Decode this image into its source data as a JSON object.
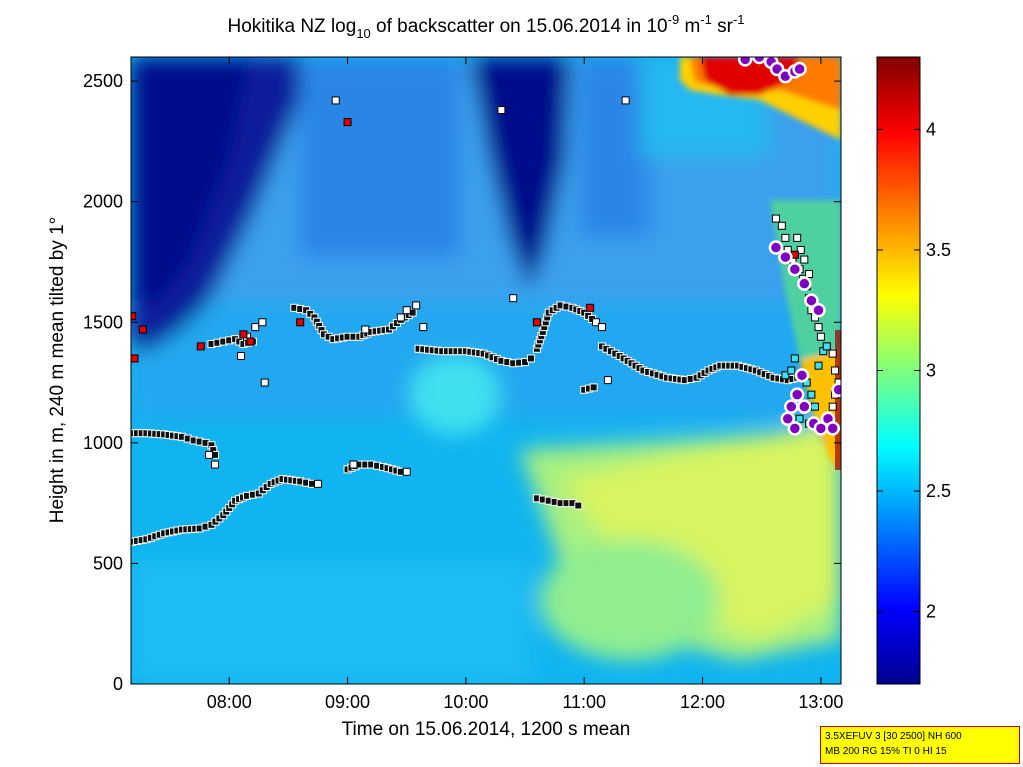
{
  "chart_data": {
    "type": "heatmap",
    "title": {
      "pre": "Hokitika NZ log",
      "sub": "10",
      "mid": " of backscatter on 15.06.2014 in 10",
      "sup1": "-9",
      "mid2": " m",
      "sup2": "-1",
      "mid3": " sr",
      "sup3": "-1"
    },
    "xlabel": "Time on 15.06.2014, 1200 s mean",
    "ylabel": "Height in m, 240 m mean tilted by 1°",
    "xlim": [
      7.17,
      13.17
    ],
    "ylim": [
      0,
      2600
    ],
    "x_ticks": [
      {
        "value": 8,
        "label": "08:00"
      },
      {
        "value": 9,
        "label": "09:00"
      },
      {
        "value": 10,
        "label": "10:00"
      },
      {
        "value": 11,
        "label": "11:00"
      },
      {
        "value": 12,
        "label": "12:00"
      },
      {
        "value": 13,
        "label": "13:00"
      }
    ],
    "y_ticks": [
      {
        "value": 0,
        "label": "0"
      },
      {
        "value": 500,
        "label": "500"
      },
      {
        "value": 1000,
        "label": "1000"
      },
      {
        "value": 1500,
        "label": "1500"
      },
      {
        "value": 2000,
        "label": "2000"
      },
      {
        "value": 2500,
        "label": "2500"
      }
    ],
    "colorbar": {
      "range": [
        1.7,
        4.3
      ],
      "ticks": [
        {
          "value": 2,
          "label": "2"
        },
        {
          "value": 2.5,
          "label": "2.5"
        },
        {
          "value": 3,
          "label": "3"
        },
        {
          "value": 3.5,
          "label": "3.5"
        },
        {
          "value": 4,
          "label": "4"
        }
      ],
      "colormap": [
        "#00008f",
        "#0000ff",
        "#00ffff",
        "#ffff00",
        "#ff0000",
        "#800000"
      ]
    },
    "layers": [
      {
        "kind": "black",
        "points": [
          [
            7.18,
            590
          ],
          [
            7.3,
            600
          ],
          [
            7.45,
            625
          ],
          [
            7.6,
            640
          ],
          [
            7.75,
            645
          ],
          [
            7.85,
            660
          ],
          [
            7.95,
            700
          ],
          [
            8.05,
            760
          ],
          [
            8.15,
            780
          ],
          [
            8.25,
            790
          ],
          [
            8.35,
            830
          ],
          [
            8.45,
            850
          ],
          [
            8.6,
            840
          ],
          [
            8.7,
            830
          ]
        ]
      },
      {
        "kind": "black",
        "points": [
          [
            7.18,
            1040
          ],
          [
            7.3,
            1040
          ],
          [
            7.45,
            1035
          ],
          [
            7.6,
            1025
          ],
          [
            7.7,
            1010
          ],
          [
            7.8,
            1000
          ],
          [
            7.85,
            990
          ],
          [
            7.88,
            950
          ]
        ]
      },
      {
        "kind": "black",
        "points": [
          [
            8.55,
            1560
          ],
          [
            8.65,
            1550
          ],
          [
            8.72,
            1520
          ],
          [
            8.8,
            1450
          ],
          [
            8.88,
            1430
          ],
          [
            9.0,
            1440
          ],
          [
            9.1,
            1440
          ],
          [
            9.2,
            1460
          ],
          [
            9.35,
            1470
          ],
          [
            9.45,
            1510
          ],
          [
            9.55,
            1540
          ]
        ]
      },
      {
        "kind": "black",
        "points": [
          [
            9.6,
            1390
          ],
          [
            9.8,
            1380
          ],
          [
            10.0,
            1380
          ],
          [
            10.15,
            1370
          ],
          [
            10.3,
            1340
          ],
          [
            10.4,
            1330
          ],
          [
            10.5,
            1335
          ],
          [
            10.55,
            1350
          ]
        ]
      },
      {
        "kind": "black",
        "points": [
          [
            10.6,
            1390
          ],
          [
            10.65,
            1460
          ],
          [
            10.7,
            1540
          ],
          [
            10.8,
            1570
          ],
          [
            10.9,
            1560
          ],
          [
            11.0,
            1540
          ],
          [
            11.1,
            1500
          ]
        ]
      },
      {
        "kind": "black",
        "points": [
          [
            11.15,
            1400
          ],
          [
            11.3,
            1360
          ],
          [
            11.5,
            1300
          ],
          [
            11.7,
            1270
          ],
          [
            11.85,
            1260
          ],
          [
            11.95,
            1270
          ],
          [
            12.05,
            1300
          ],
          [
            12.15,
            1320
          ],
          [
            12.3,
            1320
          ],
          [
            12.45,
            1300
          ],
          [
            12.6,
            1270
          ],
          [
            12.72,
            1260
          ],
          [
            12.8,
            1270
          ]
        ]
      },
      {
        "kind": "black",
        "points": [
          [
            9.0,
            890
          ],
          [
            9.1,
            910
          ],
          [
            9.2,
            910
          ],
          [
            9.3,
            900
          ],
          [
            9.45,
            880
          ]
        ]
      },
      {
        "kind": "black",
        "points": [
          [
            10.6,
            770
          ],
          [
            10.7,
            760
          ],
          [
            10.8,
            750
          ],
          [
            10.9,
            750
          ],
          [
            10.95,
            740
          ]
        ]
      },
      {
        "kind": "black",
        "points": [
          [
            7.85,
            1410
          ],
          [
            7.95,
            1420
          ],
          [
            8.05,
            1430
          ],
          [
            8.12,
            1410
          ],
          [
            8.2,
            1420
          ]
        ]
      },
      {
        "kind": "black",
        "points": [
          [
            11.0,
            1220
          ],
          [
            11.08,
            1230
          ]
        ]
      },
      {
        "kind": "white",
        "points": [
          [
            7.88,
            910
          ],
          [
            7.83,
            950
          ],
          [
            8.1,
            1360
          ],
          [
            8.3,
            1250
          ],
          [
            8.15,
            1440
          ],
          [
            8.22,
            1480
          ],
          [
            8.28,
            1500
          ],
          [
            8.75,
            830
          ],
          [
            9.5,
            880
          ],
          [
            9.45,
            1520
          ],
          [
            9.5,
            1550
          ],
          [
            9.58,
            1570
          ],
          [
            9.64,
            1480
          ],
          [
            10.3,
            2380
          ],
          [
            10.4,
            1600
          ],
          [
            11.35,
            2420
          ],
          [
            11.2,
            1260
          ],
          [
            11.1,
            1500
          ],
          [
            11.15,
            1480
          ],
          [
            8.9,
            2420
          ],
          [
            9.05,
            910
          ],
          [
            9.15,
            1470
          ],
          [
            12.62,
            1930
          ],
          [
            12.67,
            1900
          ],
          [
            12.7,
            1850
          ],
          [
            12.72,
            1800
          ],
          [
            12.76,
            1760
          ],
          [
            12.82,
            1720
          ],
          [
            12.85,
            1680
          ],
          [
            12.88,
            1650
          ],
          [
            12.9,
            1600
          ],
          [
            12.92,
            1550
          ],
          [
            12.95,
            1520
          ],
          [
            12.98,
            1480
          ],
          [
            13.0,
            1440
          ],
          [
            13.05,
            1400
          ],
          [
            13.1,
            1370
          ],
          [
            13.12,
            1300
          ],
          [
            13.15,
            1250
          ],
          [
            13.12,
            1200
          ],
          [
            13.1,
            1150
          ],
          [
            12.8,
            1850
          ],
          [
            12.83,
            1800
          ],
          [
            12.86,
            1760
          ],
          [
            12.9,
            1700
          ]
        ]
      },
      {
        "kind": "red",
        "points": [
          [
            7.18,
            1525
          ],
          [
            7.2,
            1350
          ],
          [
            7.27,
            1470
          ],
          [
            7.76,
            1400
          ],
          [
            8.12,
            1450
          ],
          [
            8.18,
            1420
          ],
          [
            8.6,
            1500
          ],
          [
            9.0,
            2330
          ],
          [
            10.6,
            1500
          ],
          [
            11.05,
            1560
          ],
          [
            12.78,
            1780
          ],
          [
            12.88,
            1650
          ]
        ]
      },
      {
        "kind": "cyan",
        "points": [
          [
            12.7,
            1280
          ],
          [
            12.75,
            1300
          ],
          [
            12.78,
            1350
          ],
          [
            12.85,
            1280
          ],
          [
            12.88,
            1250
          ],
          [
            12.92,
            1200
          ],
          [
            12.95,
            1150
          ],
          [
            12.98,
            1320
          ],
          [
            13.02,
            1380
          ],
          [
            13.05,
            1400
          ],
          [
            12.82,
            1100
          ],
          [
            12.9,
            1080
          ]
        ]
      },
      {
        "kind": "purple",
        "points": [
          [
            12.36,
            2590
          ],
          [
            12.48,
            2600
          ],
          [
            12.58,
            2580
          ],
          [
            12.63,
            2550
          ],
          [
            12.7,
            2520
          ],
          [
            12.78,
            2540
          ],
          [
            12.82,
            2550
          ],
          [
            12.62,
            1810
          ],
          [
            12.7,
            1770
          ],
          [
            12.78,
            1720
          ],
          [
            12.86,
            1660
          ],
          [
            12.92,
            1590
          ],
          [
            12.98,
            1550
          ],
          [
            12.84,
            1280
          ],
          [
            12.8,
            1200
          ],
          [
            12.75,
            1150
          ],
          [
            12.72,
            1100
          ],
          [
            12.78,
            1060
          ],
          [
            12.86,
            1150
          ],
          [
            12.94,
            1080
          ],
          [
            13.0,
            1060
          ],
          [
            13.06,
            1100
          ],
          [
            13.1,
            1060
          ],
          [
            13.15,
            1220
          ]
        ]
      }
    ]
  },
  "info_box": {
    "line1": "3.5XEFUV 3 [30 2500] NH 600",
    "line2": "MB 200 RG 15% TI 0 HI 15"
  }
}
